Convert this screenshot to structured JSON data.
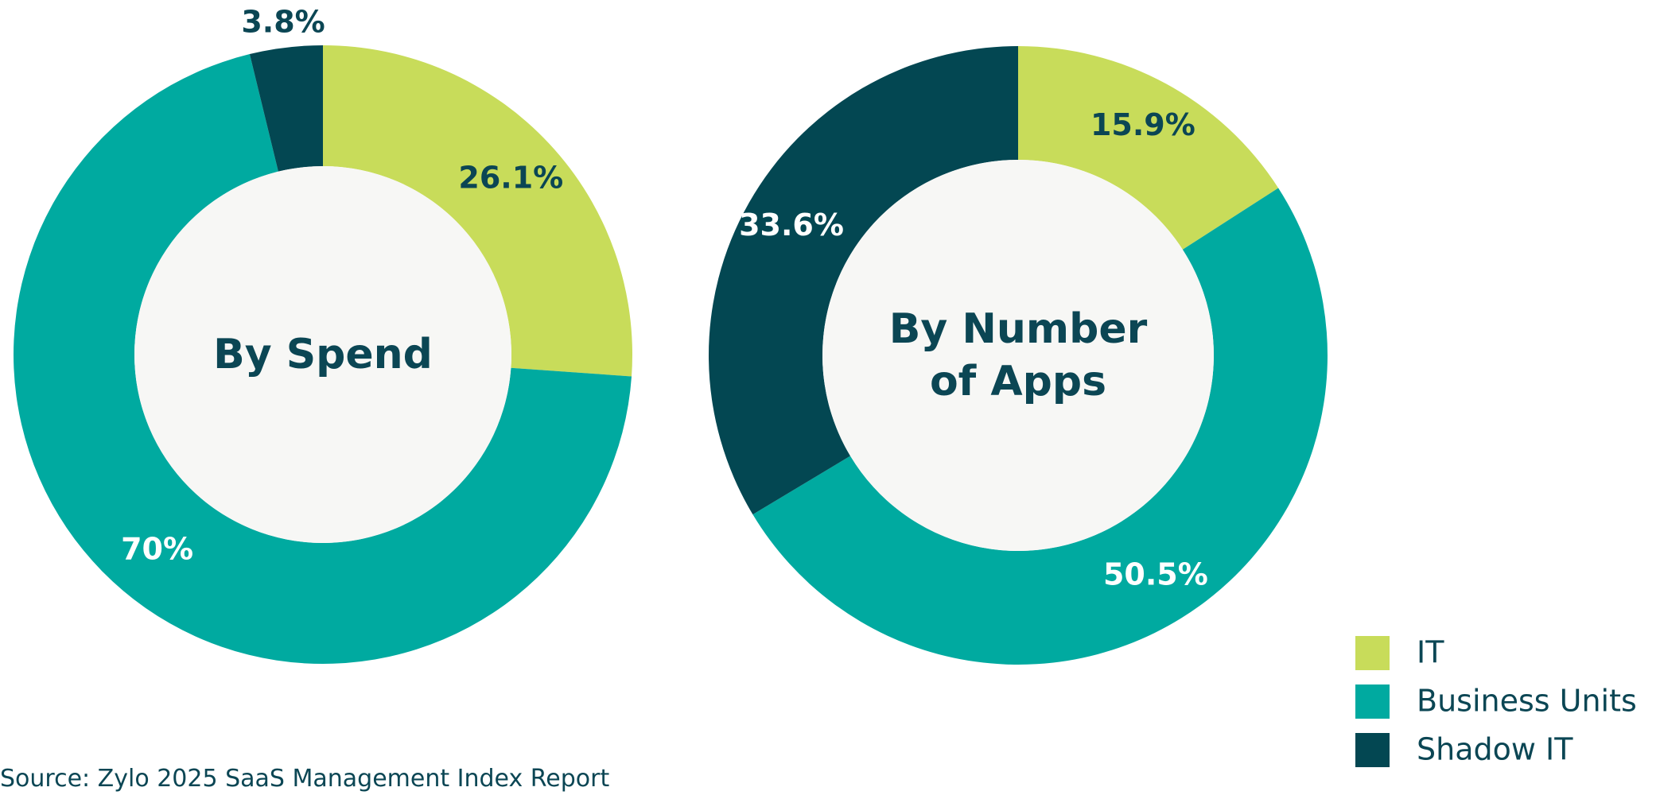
{
  "chart_data": [
    {
      "type": "pie",
      "title": "By Spend",
      "categories": [
        "IT",
        "Business Units",
        "Shadow IT"
      ],
      "values": [
        26.1,
        70,
        3.8
      ],
      "value_labels": [
        "26.1%",
        "70%",
        "3.8%"
      ],
      "colors": [
        "#c8dc5a",
        "#00aaa0",
        "#034752"
      ]
    },
    {
      "type": "pie",
      "title": "By Number of Apps",
      "categories": [
        "IT",
        "Business Units",
        "Shadow IT"
      ],
      "values": [
        15.9,
        50.5,
        33.6
      ],
      "value_labels": [
        "15.9%",
        "50.5%",
        "33.6%"
      ],
      "colors": [
        "#c8dc5a",
        "#00aaa0",
        "#034752"
      ]
    }
  ],
  "source": "Source: Zylo 2025 SaaS Management Index Report"
}
